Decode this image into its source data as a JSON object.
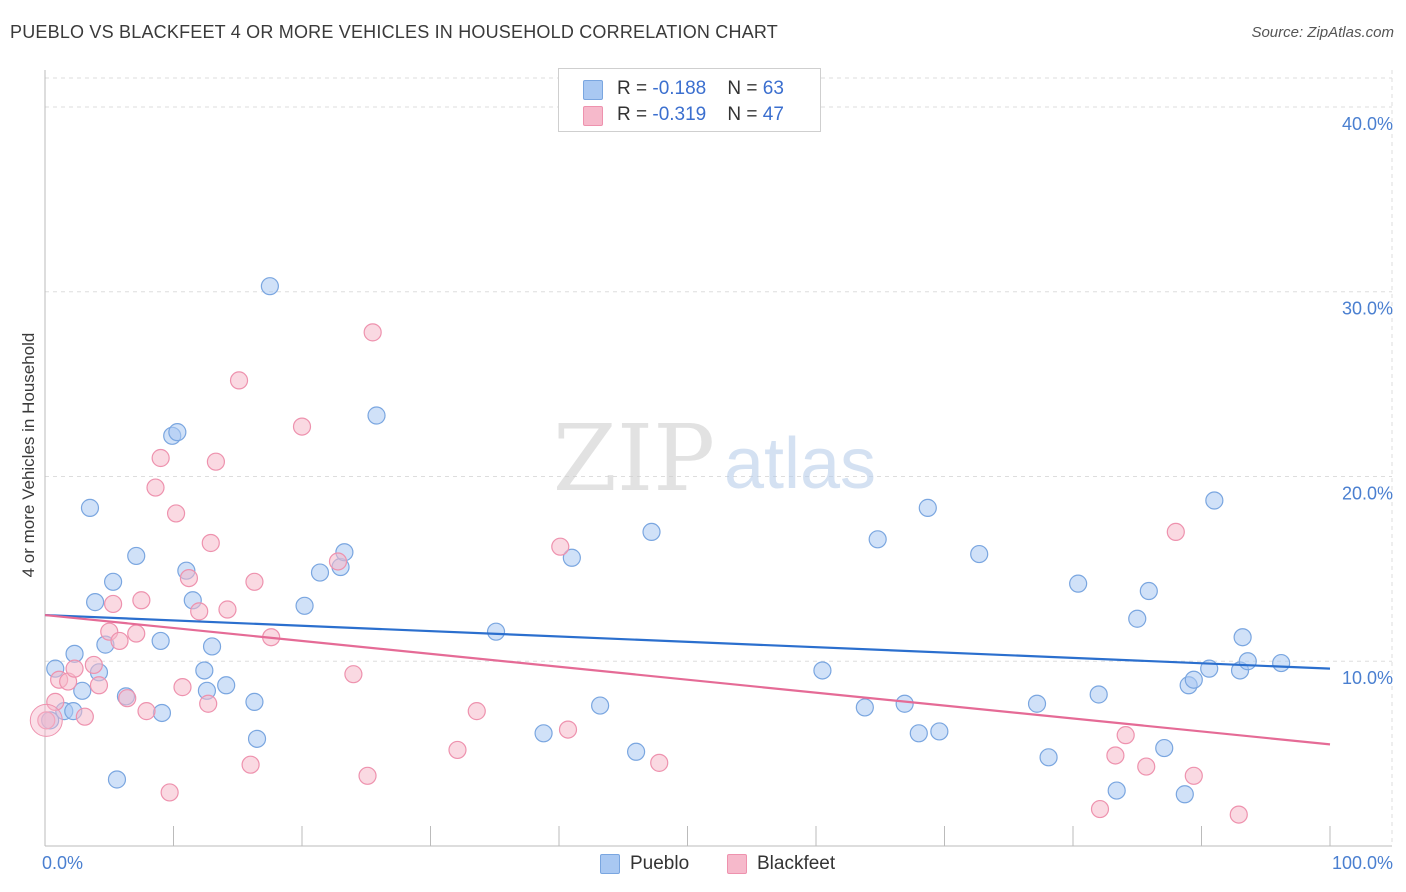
{
  "title": "PUEBLO VS BLACKFEET 4 OR MORE VEHICLES IN HOUSEHOLD CORRELATION CHART",
  "source": "Source: ZipAtlas.com",
  "watermark": {
    "zip": "ZIP",
    "atlas": "atlas"
  },
  "legend": {
    "rows": [
      {
        "r_label": "R = ",
        "r_value": "-0.188",
        "n_label": "N = ",
        "n_value": "63"
      },
      {
        "r_label": "R = ",
        "r_value": "-0.319",
        "n_label": "N = ",
        "n_value": "47"
      }
    ]
  },
  "colors": {
    "pueblo_fill": "#a9c8f2",
    "pueblo_stroke": "#7aa6e0",
    "pueblo_line": "#2b6fce",
    "blackfeet_fill": "#f6b9cb",
    "blackfeet_stroke": "#ee92ae",
    "blackfeet_line": "#e56b96",
    "tick_text": "#4a7fd0",
    "grid": "#dddddd"
  },
  "chart_data": {
    "type": "scatter",
    "title": "PUEBLO VS BLACKFEET 4 OR MORE VEHICLES IN HOUSEHOLD CORRELATION CHART",
    "xlabel": "",
    "ylabel": "4 or more Vehicles in Household",
    "xlim": [
      0,
      100
    ],
    "ylim": [
      0,
      42
    ],
    "x_tick_labels": [
      "0.0%",
      "100.0%"
    ],
    "y_ticks": [
      10,
      20,
      30,
      40
    ],
    "y_tick_labels": [
      "10.0%",
      "20.0%",
      "30.0%",
      "40.0%"
    ],
    "grid": true,
    "legend_position": "top-center",
    "series": [
      {
        "name": "Pueblo",
        "points": [
          [
            0.4,
            6.8
          ],
          [
            0.8,
            9.6
          ],
          [
            1.5,
            7.3
          ],
          [
            2.2,
            7.3
          ],
          [
            2.3,
            10.4
          ],
          [
            2.9,
            8.4
          ],
          [
            3.5,
            18.3
          ],
          [
            3.9,
            13.2
          ],
          [
            4.2,
            9.4
          ],
          [
            4.7,
            10.9
          ],
          [
            5.3,
            14.3
          ],
          [
            5.6,
            3.6
          ],
          [
            6.3,
            8.1
          ],
          [
            7.1,
            15.7
          ],
          [
            9.0,
            11.1
          ],
          [
            9.1,
            7.2
          ],
          [
            9.9,
            22.2
          ],
          [
            10.3,
            22.4
          ],
          [
            11.0,
            14.9
          ],
          [
            11.5,
            13.3
          ],
          [
            12.4,
            9.5
          ],
          [
            12.6,
            8.4
          ],
          [
            13.0,
            10.8
          ],
          [
            14.1,
            8.7
          ],
          [
            16.5,
            5.8
          ],
          [
            17.5,
            30.3
          ],
          [
            16.3,
            7.8
          ],
          [
            20.2,
            13.0
          ],
          [
            21.4,
            14.8
          ],
          [
            23.0,
            15.1
          ],
          [
            23.3,
            15.9
          ],
          [
            25.8,
            23.3
          ],
          [
            35.1,
            11.6
          ],
          [
            38.8,
            6.1
          ],
          [
            41.0,
            15.6
          ],
          [
            43.2,
            7.6
          ],
          [
            46.0,
            5.1
          ],
          [
            47.2,
            17.0
          ],
          [
            60.5,
            9.5
          ],
          [
            63.8,
            7.5
          ],
          [
            64.8,
            16.6
          ],
          [
            66.9,
            7.7
          ],
          [
            68.0,
            6.1
          ],
          [
            68.7,
            18.3
          ],
          [
            69.6,
            6.2
          ],
          [
            72.7,
            15.8
          ],
          [
            77.2,
            7.7
          ],
          [
            78.1,
            4.8
          ],
          [
            80.4,
            14.2
          ],
          [
            82.0,
            8.2
          ],
          [
            83.4,
            3.0
          ],
          [
            85.0,
            12.3
          ],
          [
            85.9,
            13.8
          ],
          [
            87.1,
            5.3
          ],
          [
            88.7,
            2.8
          ],
          [
            89.0,
            8.7
          ],
          [
            89.4,
            9.0
          ],
          [
            90.6,
            9.6
          ],
          [
            91.0,
            18.7
          ],
          [
            93.0,
            9.5
          ],
          [
            93.2,
            11.3
          ],
          [
            93.6,
            10.0
          ],
          [
            96.2,
            9.9
          ]
        ]
      },
      {
        "name": "Blackfeet",
        "points": [
          [
            0.1,
            6.8
          ],
          [
            0.8,
            7.8
          ],
          [
            1.1,
            9.0
          ],
          [
            1.8,
            8.9
          ],
          [
            2.3,
            9.6
          ],
          [
            3.1,
            7.0
          ],
          [
            3.8,
            9.8
          ],
          [
            4.2,
            8.7
          ],
          [
            5.0,
            11.6
          ],
          [
            5.3,
            13.1
          ],
          [
            5.8,
            11.1
          ],
          [
            6.4,
            8.0
          ],
          [
            7.1,
            11.5
          ],
          [
            7.5,
            13.3
          ],
          [
            7.9,
            7.3
          ],
          [
            8.6,
            19.4
          ],
          [
            9.0,
            21.0
          ],
          [
            9.7,
            2.9
          ],
          [
            10.2,
            18.0
          ],
          [
            10.7,
            8.6
          ],
          [
            11.2,
            14.5
          ],
          [
            12.0,
            12.7
          ],
          [
            12.7,
            7.7
          ],
          [
            12.9,
            16.4
          ],
          [
            13.3,
            20.8
          ],
          [
            14.2,
            12.8
          ],
          [
            15.1,
            25.2
          ],
          [
            16.0,
            4.4
          ],
          [
            16.3,
            14.3
          ],
          [
            17.6,
            11.3
          ],
          [
            20.0,
            22.7
          ],
          [
            22.8,
            15.4
          ],
          [
            24.0,
            9.3
          ],
          [
            25.1,
            3.8
          ],
          [
            25.5,
            27.8
          ],
          [
            32.1,
            5.2
          ],
          [
            33.6,
            7.3
          ],
          [
            40.1,
            16.2
          ],
          [
            40.7,
            6.3
          ],
          [
            47.8,
            4.5
          ],
          [
            82.1,
            2.0
          ],
          [
            83.3,
            4.9
          ],
          [
            84.1,
            6.0
          ],
          [
            85.7,
            4.3
          ],
          [
            88.0,
            17.0
          ],
          [
            89.4,
            3.8
          ],
          [
            92.9,
            1.7
          ]
        ]
      }
    ],
    "trend_lines": [
      {
        "series": "Pueblo",
        "x": [
          0,
          100
        ],
        "y": [
          12.5,
          9.6
        ]
      },
      {
        "series": "Blackfeet",
        "x": [
          0,
          100
        ],
        "y": [
          12.5,
          5.5
        ]
      }
    ]
  }
}
